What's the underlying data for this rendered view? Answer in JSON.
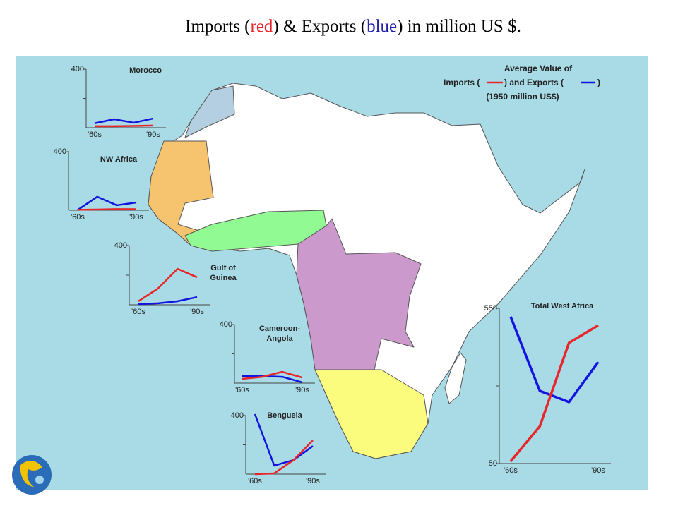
{
  "title_parts": [
    {
      "text": "Imports (",
      "color": "#000000"
    },
    {
      "text": "red",
      "color": "#e8262a"
    },
    {
      "text": ") & Exports (",
      "color": "#000000"
    },
    {
      "text": "blue",
      "color": "#2222aa"
    },
    {
      "text": ") in million US $.",
      "color": "#000000"
    }
  ],
  "legend": {
    "heading": "Average Value of",
    "imports": "Imports (",
    "and_exports": ") and Exports (",
    "close": ")",
    "units": "(1950 million US$)",
    "import_color": "#e8262a",
    "export_color": "#1414e0"
  },
  "chart_data": [
    {
      "type": "line",
      "title": [
        "Morocco"
      ],
      "categories": [
        "'60s",
        null,
        null,
        "'90s"
      ],
      "ylim": [
        0,
        400
      ],
      "yticks": [
        {
          "value": 200,
          "label": null
        },
        400
      ],
      "series": [
        {
          "color": "#1414e0",
          "values": [
            30,
            58,
            34,
            63
          ]
        },
        {
          "color": "#e8262a",
          "values": [
            10,
            10,
            12,
            15
          ]
        }
      ]
    },
    {
      "type": "line",
      "title": [
        "NW Africa"
      ],
      "categories": [
        "'60s",
        null,
        null,
        "'90s"
      ],
      "ylim": [
        0,
        400
      ],
      "yticks": [
        {
          "value": 200,
          "label": null
        },
        400
      ],
      "series": [
        {
          "color": "#1414e0",
          "values": [
            2,
            92,
            34,
            53
          ]
        },
        {
          "color": "#e8262a",
          "values": [
            3,
            5,
            8,
            7
          ]
        }
      ]
    },
    {
      "type": "line",
      "title": [
        "Gulf of",
        "Guinea"
      ],
      "categories": [
        "'60s",
        null,
        null,
        "'90s"
      ],
      "ylim": [
        0,
        400
      ],
      "yticks": [
        {
          "value": 200,
          "label": null
        },
        400
      ],
      "series": [
        {
          "color": "#e8262a",
          "values": [
            24,
            110,
            243,
            186
          ]
        },
        {
          "color": "#1414e0",
          "values": [
            5,
            10,
            24,
            52
          ]
        }
      ]
    },
    {
      "type": "line",
      "title": [
        "Cameroon-",
        "Angola"
      ],
      "categories": [
        "'60s",
        null,
        null,
        "'90s"
      ],
      "ylim": [
        0,
        400
      ],
      "yticks": [
        {
          "value": 200,
          "label": null
        },
        400
      ],
      "series": [
        {
          "color": "#1414e0",
          "values": [
            48,
            48,
            43,
            5
          ]
        },
        {
          "color": "#e8262a",
          "values": [
            29,
            43,
            77,
            38
          ]
        }
      ]
    },
    {
      "type": "line",
      "title": [
        "Benguela"
      ],
      "categories": [
        "'60s",
        null,
        null,
        "'90s"
      ],
      "ylim": [
        0,
        400
      ],
      "yticks": [
        {
          "value": 200,
          "label": null
        },
        400
      ],
      "series": [
        {
          "color": "#1414e0",
          "values": [
            410,
            58,
            96,
            192
          ]
        },
        {
          "color": "#e8262a",
          "values": [
            0,
            5,
            96,
            231
          ]
        }
      ]
    },
    {
      "type": "line",
      "title": [
        "Total West Africa"
      ],
      "categories": [
        "'60s",
        null,
        null,
        "'90s"
      ],
      "ylim": [
        50,
        550
      ],
      "yticks": [
        50,
        {
          "value": 300,
          "label": null
        },
        550
      ],
      "series": [
        {
          "color": "#1414e0",
          "values": [
            523,
            284,
            248,
            377
          ]
        },
        {
          "color": "#e8262a",
          "values": [
            57,
            170,
            439,
            495
          ]
        }
      ]
    }
  ]
}
